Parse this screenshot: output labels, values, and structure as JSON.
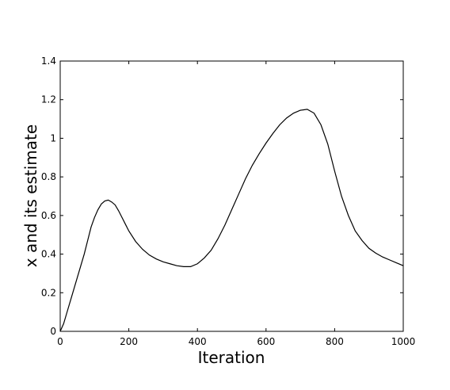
{
  "chart_data": {
    "type": "line",
    "title": "",
    "xlabel": "Iteration",
    "ylabel": "x and its estimate",
    "xlim": [
      0,
      1000
    ],
    "ylim": [
      0,
      1.4
    ],
    "xticks": [
      0,
      200,
      400,
      600,
      800,
      1000
    ],
    "xtick_labels": [
      "0",
      "200",
      "400",
      "600",
      "800",
      "1000"
    ],
    "yticks": [
      0,
      0.2,
      0.4,
      0.6,
      0.8,
      1.0,
      1.2,
      1.4
    ],
    "ytick_labels": [
      "0",
      "0.2",
      "0.4",
      "0.6",
      "0.8",
      "1",
      "1.2",
      "1.4"
    ],
    "grid": false,
    "line_color": "#000000",
    "series": [
      {
        "x": [
          0,
          10,
          20,
          30,
          40,
          50,
          60,
          70,
          80,
          90,
          100,
          110,
          120,
          130,
          140,
          150,
          160,
          170,
          180,
          190,
          200,
          220,
          240,
          260,
          280,
          300,
          320,
          340,
          360,
          380,
          400,
          420,
          440,
          460,
          480,
          500,
          520,
          540,
          560,
          580,
          600,
          620,
          640,
          660,
          680,
          700,
          720,
          740,
          760,
          780,
          800,
          820,
          840,
          860,
          880,
          900,
          920,
          940,
          960,
          980,
          1000
        ],
        "y": [
          0.0,
          0.04,
          0.1,
          0.16,
          0.22,
          0.28,
          0.34,
          0.4,
          0.47,
          0.54,
          0.59,
          0.63,
          0.66,
          0.675,
          0.68,
          0.67,
          0.655,
          0.625,
          0.59,
          0.555,
          0.52,
          0.465,
          0.425,
          0.395,
          0.375,
          0.36,
          0.35,
          0.34,
          0.335,
          0.335,
          0.35,
          0.38,
          0.42,
          0.48,
          0.55,
          0.63,
          0.71,
          0.79,
          0.86,
          0.92,
          0.975,
          1.025,
          1.07,
          1.105,
          1.13,
          1.145,
          1.15,
          1.13,
          1.07,
          0.97,
          0.83,
          0.7,
          0.6,
          0.52,
          0.47,
          0.43,
          0.405,
          0.385,
          0.37,
          0.355,
          0.34
        ]
      }
    ]
  }
}
